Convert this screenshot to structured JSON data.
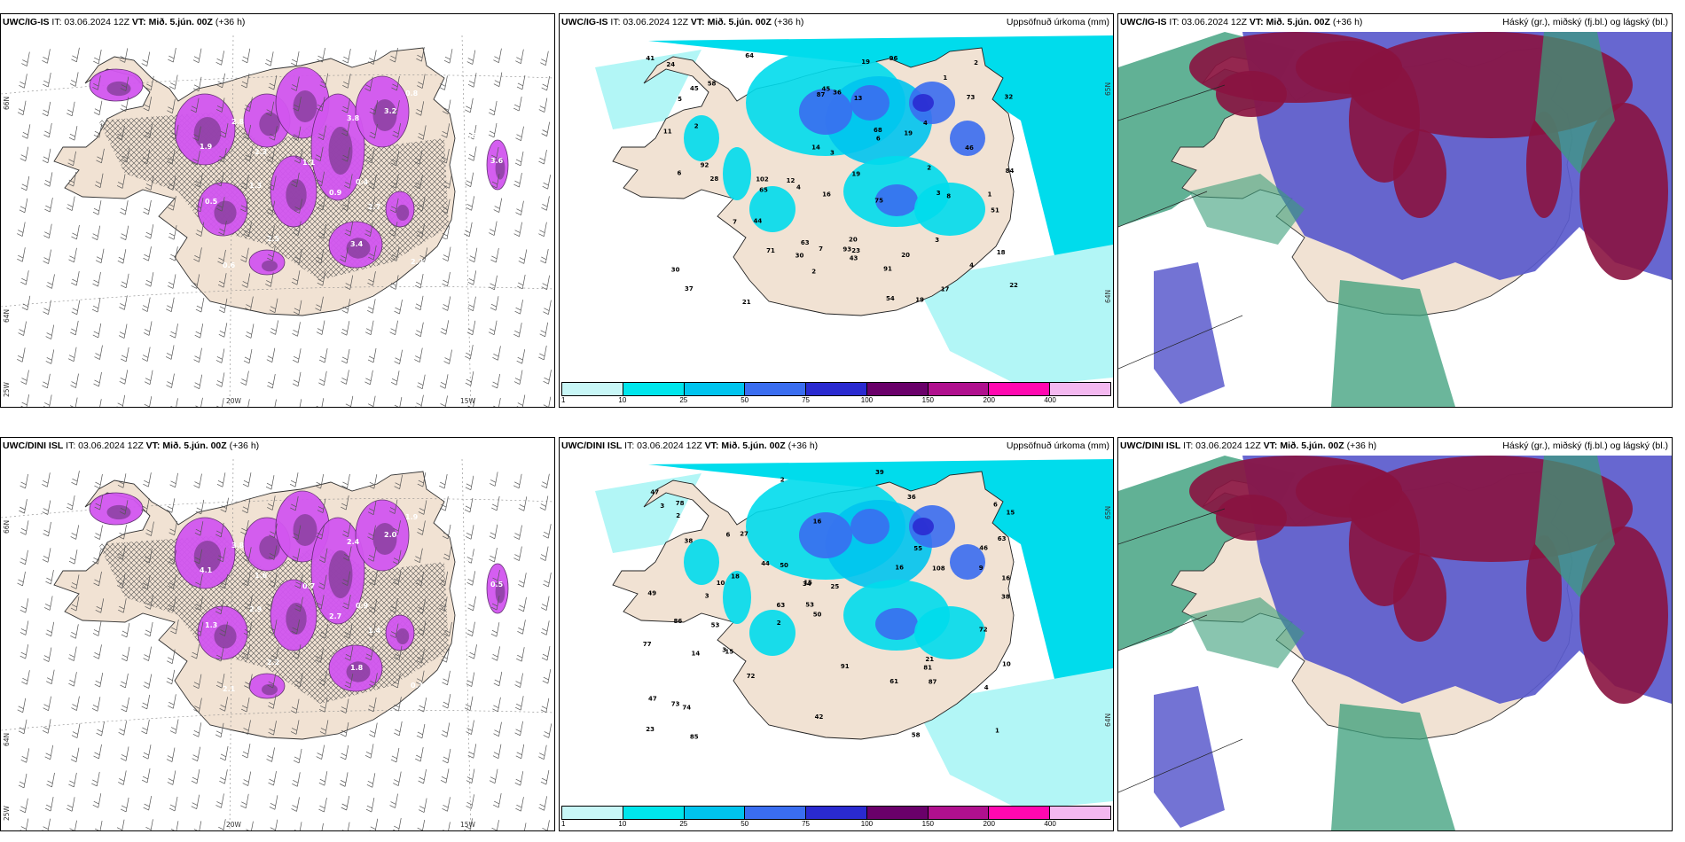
{
  "panels": [
    {
      "id": "p1",
      "model": "UWC/IG-IS",
      "it_label": "IT: 03.06.2024 12Z",
      "vt_label": "VT: Mið. 5.jún. 00Z",
      "lead": "(+36 h)",
      "right_title": "",
      "kind": "wind",
      "coords": {
        "lat_top": "66N",
        "lat_mid": "64N",
        "lon_left": "25W",
        "lon_a": "20W",
        "lon_b": "15W"
      },
      "values": [
        "0.8",
        "3.2",
        "2.8",
        "1.9",
        "2.3",
        "3.8",
        "1.1",
        "0.9",
        "0.4",
        "2.7",
        "1.3",
        "0.5",
        "2.5",
        "3.4",
        "2.2",
        "1.8",
        "0.6",
        "3.6",
        "1.5"
      ]
    },
    {
      "id": "p2",
      "model": "UWC/IG-IS",
      "it_label": "IT: 03.06.2024 12Z",
      "vt_label": "VT: Mið. 5.jún. 00Z",
      "lead": "(+36 h)",
      "right_title": "Uppsöfnuð úrkoma (mm)",
      "kind": "precip",
      "coords": {
        "lat_top": "65N",
        "lat_mid": "64N"
      },
      "values": [
        "4",
        "18",
        "20",
        "19",
        "20",
        "19",
        "19",
        "22",
        "58",
        "91",
        "92",
        "102",
        "96",
        "93",
        "63",
        "37",
        "87",
        "73",
        "71",
        "64",
        "32",
        "54",
        "44",
        "24",
        "30",
        "46",
        "45",
        "51",
        "65",
        "43",
        "23",
        "84",
        "68",
        "75",
        "28",
        "41",
        "14",
        "21",
        "11",
        "12",
        "13",
        "6",
        "4",
        "4",
        "2",
        "2",
        "2",
        "7",
        "45",
        "30",
        "16",
        "17",
        "19",
        "8",
        "7",
        "1",
        "1",
        "3",
        "3",
        "3",
        "2",
        "6",
        "5",
        "36"
      ]
    },
    {
      "id": "p3",
      "model": "UWC/IG-IS",
      "it_label": "IT: 03.06.2024 12Z",
      "vt_label": "VT: Mið. 5.jún. 00Z",
      "lead": "(+36 h)",
      "right_title": "Háský (gr.), miðský (fj.bl.) og lágský (bl.)",
      "kind": "cloud"
    },
    {
      "id": "p4",
      "model": "UWC/DINI ISL",
      "it_label": "IT: 03.06.2024 12Z",
      "vt_label": "VT: Mið. 5.jún. 00Z",
      "lead": "(+36 h)",
      "right_title": "",
      "kind": "wind",
      "coords": {
        "lat_top": "66N",
        "lat_mid": "64N",
        "lon_left": "25W",
        "lon_a": "20W",
        "lon_b": "15W"
      },
      "values": [
        "1.9",
        "2.0",
        "3.8",
        "4.1",
        "1.6",
        "2.4",
        "0.7",
        "2.7",
        "0.9",
        "1.4",
        "2.9",
        "1.3",
        "2.2",
        "1.8",
        "0.3",
        "3.2",
        "2.1",
        "0.5",
        "1.5"
      ]
    },
    {
      "id": "p5",
      "model": "UWC/DINI ISL",
      "it_label": "IT: 03.06.2024 12Z",
      "vt_label": "VT: Mið. 5.jún. 00Z",
      "lead": "(+36 h)",
      "right_title": "Uppsöfnuð úrkoma (mm)",
      "kind": "precip",
      "coords": {
        "lat_top": "65N",
        "lat_mid": "64N"
      },
      "values": [
        "15",
        "15",
        "16",
        "15",
        "47",
        "42",
        "38",
        "72",
        "50",
        "53",
        "86",
        "108",
        "91",
        "87",
        "81",
        "55",
        "61",
        "58",
        "63",
        "74",
        "49",
        "21",
        "34",
        "38",
        "27",
        "10",
        "9",
        "10",
        "3",
        "3",
        "72",
        "23",
        "78",
        "36",
        "53",
        "77",
        "63",
        "46",
        "18",
        "16",
        "25",
        "14",
        "73",
        "44",
        "47",
        "39",
        "16",
        "6",
        "6",
        "4",
        "2",
        "2",
        "2",
        "1",
        "3",
        "50",
        "85"
      ]
    },
    {
      "id": "p6",
      "model": "UWC/DINI ISL",
      "it_label": "IT: 03.06.2024 12Z",
      "vt_label": "VT: Mið. 5.jún. 00Z",
      "lead": "(+36 h)",
      "right_title": "Háský (gr.), miðský (fj.bl.) og lágský (bl.)",
      "kind": "cloud"
    }
  ],
  "precip_legend": {
    "ticks": [
      "1",
      "10",
      "25",
      "50",
      "75",
      "100",
      "150",
      "200",
      "400"
    ],
    "colors": [
      "#c8f7f7",
      "#00e6ec",
      "#00c4ee",
      "#3a6df0",
      "#2a2ad0",
      "#6a006a",
      "#b0108e",
      "#ff08b0",
      "#f4b8f0"
    ]
  },
  "colors": {
    "land": "#f1e2d3",
    "sea": "#ffffff",
    "precip_light": "#b2f6f6",
    "precip_med": "#00dcec",
    "wind_purple": "#d256f0",
    "cloud_high": "#8a1340",
    "cloud_mid": "#5a5acc",
    "cloud_low": "#3a9e7a"
  }
}
